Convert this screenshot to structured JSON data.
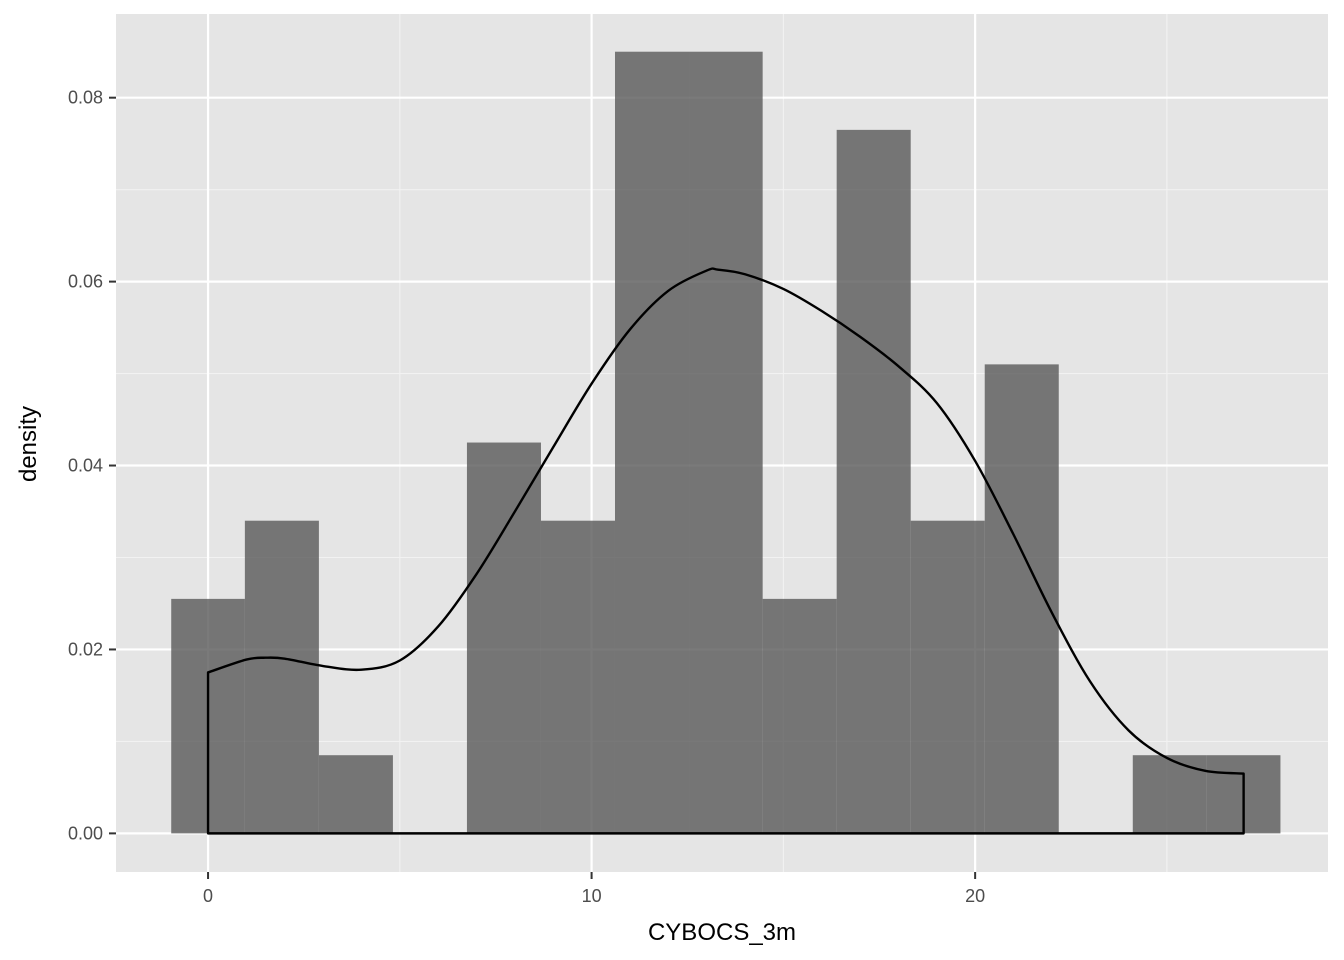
{
  "chart_data": {
    "type": "bar",
    "subtype": "histogram-with-density",
    "xlabel": "CYBOCS_3m",
    "ylabel": "density",
    "xlim": [
      -2.4,
      29.2
    ],
    "ylim": [
      -0.0042,
      0.0891
    ],
    "x_ticks": [
      {
        "value": 0,
        "label": "0"
      },
      {
        "value": 10,
        "label": "10"
      },
      {
        "value": 20,
        "label": "20"
      }
    ],
    "x_minor_ticks": [
      5,
      15,
      25
    ],
    "y_ticks": [
      {
        "value": 0.0,
        "label": "0.00"
      },
      {
        "value": 0.02,
        "label": "0.02"
      },
      {
        "value": 0.04,
        "label": "0.04"
      },
      {
        "value": 0.06,
        "label": "0.06"
      },
      {
        "value": 0.08,
        "label": "0.08"
      }
    ],
    "y_minor_ticks": [
      0.01,
      0.03,
      0.05,
      0.07
    ],
    "grid": true,
    "bins": [
      {
        "start": -0.96,
        "end": 0.96,
        "value": 0.0255
      },
      {
        "start": 0.96,
        "end": 2.89,
        "value": 0.034
      },
      {
        "start": 2.89,
        "end": 4.82,
        "value": 0.0085
      },
      {
        "start": 4.82,
        "end": 6.75,
        "value": 0.0
      },
      {
        "start": 6.75,
        "end": 8.68,
        "value": 0.0425
      },
      {
        "start": 8.68,
        "end": 10.61,
        "value": 0.034
      },
      {
        "start": 10.61,
        "end": 12.54,
        "value": 0.085
      },
      {
        "start": 12.54,
        "end": 14.46,
        "value": 0.085
      },
      {
        "start": 14.46,
        "end": 16.39,
        "value": 0.0255
      },
      {
        "start": 16.39,
        "end": 18.32,
        "value": 0.0765
      },
      {
        "start": 18.32,
        "end": 20.25,
        "value": 0.034
      },
      {
        "start": 20.25,
        "end": 22.18,
        "value": 0.051
      },
      {
        "start": 22.18,
        "end": 24.11,
        "value": 0.0
      },
      {
        "start": 24.11,
        "end": 26.04,
        "value": 0.0085
      },
      {
        "start": 26.04,
        "end": 27.96,
        "value": 0.0085
      }
    ],
    "density_curve": {
      "x": [
        0,
        1,
        1.5,
        2,
        3,
        4,
        5,
        6,
        7,
        8,
        9,
        10,
        11,
        12,
        13,
        13.3,
        14,
        15,
        16,
        17,
        18,
        19,
        20,
        21,
        22,
        23,
        24,
        25,
        26,
        27
      ],
      "y": [
        0.0175,
        0.0189,
        0.0191,
        0.019,
        0.0182,
        0.0178,
        0.0188,
        0.0225,
        0.0282,
        0.035,
        0.042,
        0.0489,
        0.0548,
        0.059,
        0.0612,
        0.0613,
        0.0608,
        0.0592,
        0.0568,
        0.054,
        0.0508,
        0.0468,
        0.0405,
        0.0325,
        0.024,
        0.0165,
        0.0112,
        0.0082,
        0.0068,
        0.0065
      ]
    },
    "colors": {
      "panel_background": "#e5e5e5",
      "grid_major": "#ffffff",
      "grid_minor": "#f2f2f2",
      "bar_fill": "#595959",
      "bar_opacity": 0.8,
      "density_line": "#000000",
      "tick_color": "#333333"
    }
  }
}
